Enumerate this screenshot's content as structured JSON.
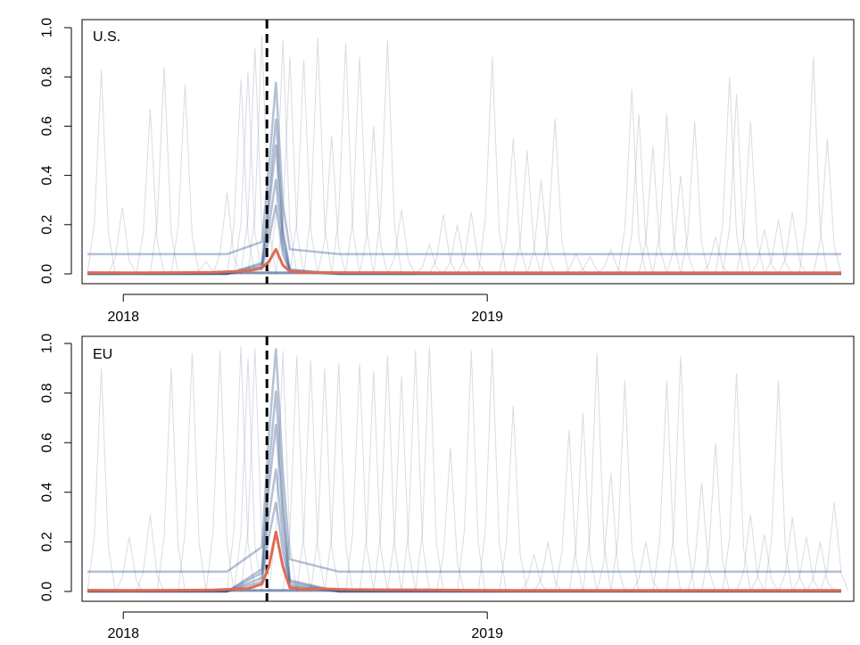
{
  "figure": {
    "panels": [
      "U.S.",
      "EU"
    ]
  },
  "chart_data": [
    {
      "type": "line",
      "panel_label": "U.S.",
      "ylim": [
        0,
        1
      ],
      "yticks": [
        "0.0",
        "0.2",
        "0.4",
        "0.6",
        "0.8",
        "1.0"
      ],
      "xticks": [
        "2018",
        "2019"
      ],
      "grid": false,
      "event_line_date": "2018-05-25",
      "colors": {
        "background_series": "#8f9cb2",
        "mean_series": "#e06a52",
        "cluster_series": "#2c4c85",
        "event_line": "#000000"
      },
      "series": [
        {
          "role": "mean",
          "color": "#e06a52",
          "x": [
            "2017-11-26",
            "2018-01-07",
            "2018-02-18",
            "2018-04-01",
            "2018-05-06",
            "2018-05-20",
            "2018-05-27",
            "2018-06-03",
            "2018-06-10",
            "2018-06-17",
            "2018-07-01",
            "2018-08-12",
            "2018-09-23",
            "2018-11-04",
            "2018-12-16",
            "2019-01-27",
            "2019-03-10",
            "2019-04-21",
            "2019-06-02",
            "2019-07-14",
            "2019-08-25",
            "2019-10-06",
            "2019-11-17",
            "2019-12-22"
          ],
          "y": [
            0.005,
            0.004,
            0.005,
            0.006,
            0.012,
            0.025,
            0.05,
            0.1,
            0.035,
            0.01,
            0.006,
            0.005,
            0.005,
            0.004,
            0.004,
            0.004,
            0.004,
            0.004,
            0.004,
            0.004,
            0.004,
            0.004,
            0.004,
            0.004
          ]
        },
        {
          "role": "cluster",
          "color": "#2c4c85",
          "x": [
            "2017-11-26",
            "2018-04-15",
            "2018-05-20",
            "2018-05-27",
            "2018-06-03",
            "2018-06-10",
            "2018-06-17",
            "2018-08-05",
            "2019-12-22"
          ],
          "y": [
            0.0,
            0.0,
            0.05,
            0.35,
            0.7,
            0.2,
            0.02,
            0.0,
            0.0
          ]
        }
      ],
      "spikes": [
        {
          "date": "2017-12-10",
          "value": 0.83
        },
        {
          "date": "2017-12-31",
          "value": 0.27
        },
        {
          "date": "2018-01-28",
          "value": 0.67
        },
        {
          "date": "2018-02-11",
          "value": 0.84
        },
        {
          "date": "2018-03-04",
          "value": 0.77
        },
        {
          "date": "2018-03-25",
          "value": 0.05
        },
        {
          "date": "2018-04-15",
          "value": 0.33
        },
        {
          "date": "2018-04-29",
          "value": 0.79
        },
        {
          "date": "2018-05-06",
          "value": 0.82
        },
        {
          "date": "2018-05-13",
          "value": 0.92
        },
        {
          "date": "2018-05-20",
          "value": 0.97
        },
        {
          "date": "2018-06-10",
          "value": 0.95
        },
        {
          "date": "2018-06-17",
          "value": 0.88
        },
        {
          "date": "2018-07-01",
          "value": 0.87
        },
        {
          "date": "2018-07-15",
          "value": 0.96
        },
        {
          "date": "2018-07-29",
          "value": 0.56
        },
        {
          "date": "2018-08-12",
          "value": 0.94
        },
        {
          "date": "2018-08-26",
          "value": 0.88
        },
        {
          "date": "2018-09-09",
          "value": 0.6
        },
        {
          "date": "2018-09-23",
          "value": 0.95
        },
        {
          "date": "2018-10-07",
          "value": 0.26
        },
        {
          "date": "2018-11-04",
          "value": 0.12
        },
        {
          "date": "2018-11-18",
          "value": 0.24
        },
        {
          "date": "2018-12-02",
          "value": 0.2
        },
        {
          "date": "2018-12-16",
          "value": 0.25
        },
        {
          "date": "2019-01-06",
          "value": 0.88
        },
        {
          "date": "2019-01-27",
          "value": 0.55
        },
        {
          "date": "2019-02-10",
          "value": 0.5
        },
        {
          "date": "2019-02-24",
          "value": 0.38
        },
        {
          "date": "2019-03-10",
          "value": 0.63
        },
        {
          "date": "2019-03-31",
          "value": 0.08
        },
        {
          "date": "2019-04-14",
          "value": 0.07
        },
        {
          "date": "2019-05-05",
          "value": 0.1
        },
        {
          "date": "2019-05-26",
          "value": 0.75
        },
        {
          "date": "2019-06-02",
          "value": 0.65
        },
        {
          "date": "2019-06-16",
          "value": 0.52
        },
        {
          "date": "2019-06-30",
          "value": 0.65
        },
        {
          "date": "2019-07-14",
          "value": 0.4
        },
        {
          "date": "2019-07-28",
          "value": 0.62
        },
        {
          "date": "2019-08-18",
          "value": 0.15
        },
        {
          "date": "2019-09-01",
          "value": 0.8
        },
        {
          "date": "2019-09-08",
          "value": 0.73
        },
        {
          "date": "2019-09-22",
          "value": 0.62
        },
        {
          "date": "2019-10-06",
          "value": 0.18
        },
        {
          "date": "2019-10-20",
          "value": 0.22
        },
        {
          "date": "2019-11-03",
          "value": 0.25
        },
        {
          "date": "2019-11-24",
          "value": 0.88
        },
        {
          "date": "2019-12-08",
          "value": 0.55
        }
      ]
    },
    {
      "type": "line",
      "panel_label": "EU",
      "ylim": [
        0,
        1
      ],
      "yticks": [
        "0.0",
        "0.2",
        "0.4",
        "0.6",
        "0.8",
        "1.0"
      ],
      "xticks": [
        "2018",
        "2019"
      ],
      "grid": false,
      "event_line_date": "2018-05-25",
      "colors": {
        "background_series": "#8f9cb2",
        "mean_series": "#e06a52",
        "cluster_series": "#2c4c85",
        "event_line": "#000000"
      },
      "series": [
        {
          "role": "mean",
          "color": "#e06a52",
          "x": [
            "2017-11-26",
            "2018-01-07",
            "2018-02-18",
            "2018-04-01",
            "2018-05-06",
            "2018-05-20",
            "2018-05-27",
            "2018-06-03",
            "2018-06-10",
            "2018-06-17",
            "2018-07-01",
            "2018-07-15",
            "2018-08-12",
            "2018-09-23",
            "2018-11-04",
            "2018-12-16",
            "2019-01-27",
            "2019-03-10",
            "2019-04-21",
            "2019-06-02",
            "2019-07-14",
            "2019-08-25",
            "2019-10-06",
            "2019-11-17",
            "2019-12-22"
          ],
          "y": [
            0.005,
            0.004,
            0.005,
            0.006,
            0.012,
            0.03,
            0.1,
            0.24,
            0.1,
            0.015,
            0.008,
            0.012,
            0.008,
            0.007,
            0.006,
            0.005,
            0.004,
            0.004,
            0.004,
            0.004,
            0.004,
            0.004,
            0.004,
            0.004,
            0.004
          ]
        },
        {
          "role": "cluster",
          "color": "#2c4c85",
          "x": [
            "2017-11-26",
            "2018-04-15",
            "2018-05-20",
            "2018-05-27",
            "2018-06-03",
            "2018-06-10",
            "2018-06-17",
            "2018-08-05",
            "2019-12-22"
          ],
          "y": [
            0.0,
            0.0,
            0.1,
            0.55,
            0.9,
            0.4,
            0.05,
            0.0,
            0.0
          ]
        }
      ],
      "spikes": [
        {
          "date": "2017-12-10",
          "value": 0.9
        },
        {
          "date": "2018-01-07",
          "value": 0.22
        },
        {
          "date": "2018-01-28",
          "value": 0.31
        },
        {
          "date": "2018-02-18",
          "value": 0.9
        },
        {
          "date": "2018-03-11",
          "value": 0.96
        },
        {
          "date": "2018-04-08",
          "value": 0.97
        },
        {
          "date": "2018-04-29",
          "value": 0.99
        },
        {
          "date": "2018-05-06",
          "value": 0.94
        },
        {
          "date": "2018-05-13",
          "value": 0.98
        },
        {
          "date": "2018-06-10",
          "value": 0.97
        },
        {
          "date": "2018-06-24",
          "value": 0.95
        },
        {
          "date": "2018-07-08",
          "value": 0.93
        },
        {
          "date": "2018-07-22",
          "value": 0.9
        },
        {
          "date": "2018-08-05",
          "value": 0.92
        },
        {
          "date": "2018-08-26",
          "value": 0.92
        },
        {
          "date": "2018-09-09",
          "value": 0.89
        },
        {
          "date": "2018-09-23",
          "value": 0.95
        },
        {
          "date": "2018-10-07",
          "value": 0.87
        },
        {
          "date": "2018-10-21",
          "value": 0.97
        },
        {
          "date": "2018-11-04",
          "value": 0.99
        },
        {
          "date": "2018-11-25",
          "value": 0.58
        },
        {
          "date": "2018-12-16",
          "value": 0.97
        },
        {
          "date": "2019-01-06",
          "value": 0.98
        },
        {
          "date": "2019-01-27",
          "value": 0.75
        },
        {
          "date": "2019-02-17",
          "value": 0.15
        },
        {
          "date": "2019-03-03",
          "value": 0.2
        },
        {
          "date": "2019-03-24",
          "value": 0.65
        },
        {
          "date": "2019-04-07",
          "value": 0.72
        },
        {
          "date": "2019-04-21",
          "value": 0.96
        },
        {
          "date": "2019-05-05",
          "value": 0.48
        },
        {
          "date": "2019-05-19",
          "value": 0.85
        },
        {
          "date": "2019-06-09",
          "value": 0.2
        },
        {
          "date": "2019-06-30",
          "value": 0.85
        },
        {
          "date": "2019-07-14",
          "value": 0.95
        },
        {
          "date": "2019-08-04",
          "value": 0.44
        },
        {
          "date": "2019-08-18",
          "value": 0.6
        },
        {
          "date": "2019-09-08",
          "value": 0.88
        },
        {
          "date": "2019-09-22",
          "value": 0.31
        },
        {
          "date": "2019-10-06",
          "value": 0.23
        },
        {
          "date": "2019-10-20",
          "value": 0.85
        },
        {
          "date": "2019-11-03",
          "value": 0.3
        },
        {
          "date": "2019-11-17",
          "value": 0.22
        },
        {
          "date": "2019-12-01",
          "value": 0.2
        },
        {
          "date": "2019-12-15",
          "value": 0.36
        }
      ]
    }
  ]
}
